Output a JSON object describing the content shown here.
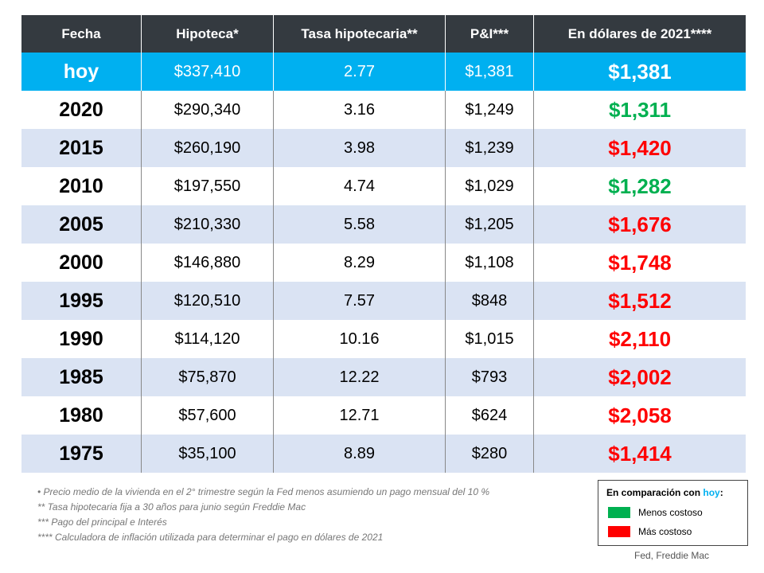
{
  "table": {
    "header": [
      "Fecha",
      "Hipoteca*",
      "Tasa hipotecaria**",
      "P&I***",
      "En dólares de 2021****"
    ],
    "rows": [
      [
        "hoy",
        "$337,410",
        "2.77",
        "$1,381",
        "$1,381"
      ],
      [
        "2020",
        "$290,340",
        "3.16",
        "$1,249",
        "$1,311"
      ],
      [
        "2015",
        "$260,190",
        "3.98",
        "$1,239",
        "$1,420"
      ],
      [
        "2010",
        "$197,550",
        "4.74",
        "$1,029",
        "$1,282"
      ],
      [
        "2005",
        "$210,330",
        "5.58",
        "$1,205",
        "$1,676"
      ],
      [
        "2000",
        "$146,880",
        "8.29",
        "$1,108",
        "$1,748"
      ],
      [
        "1995",
        "$120,510",
        "7.57",
        "$848",
        "$1,512"
      ],
      [
        "1990",
        "$114,120",
        "10.16",
        "$1,015",
        "$2,110"
      ],
      [
        "1985",
        "$75,870",
        "12.22",
        "$793",
        "$2,002"
      ],
      [
        "1980",
        "$57,600",
        "12.71",
        "$624",
        "$2,058"
      ],
      [
        "1975",
        "$35,100",
        "8.89",
        "$280",
        "$1,414"
      ]
    ],
    "last_column_colors": [
      "#ffffff",
      "#00b050",
      "#ff0000",
      "#00b050",
      "#ff0000",
      "#ff0000",
      "#ff0000",
      "#ff0000",
      "#ff0000",
      "#ff0000",
      "#ff0000"
    ]
  },
  "footnotes": [
    "•  Precio medio de la vivienda en el 2° trimestre según la Fed menos asumiendo un pago mensual del 10 %",
    "** Tasa hipotecaria fija a 30 años para junio según Freddie Mac",
    "*** Pago del principal e Interés",
    "**** Calculadora de inflación utilizada para determinar el pago en dólares de 2021"
  ],
  "legend": {
    "title": [
      "En comparación con ",
      "hoy",
      ":"
    ],
    "items": [
      {
        "label": "Menos costoso",
        "color": "#00b050"
      },
      {
        "label": "Más costoso",
        "color": "#ff0000"
      }
    ]
  },
  "source": "Fed, Freddie Mac"
}
